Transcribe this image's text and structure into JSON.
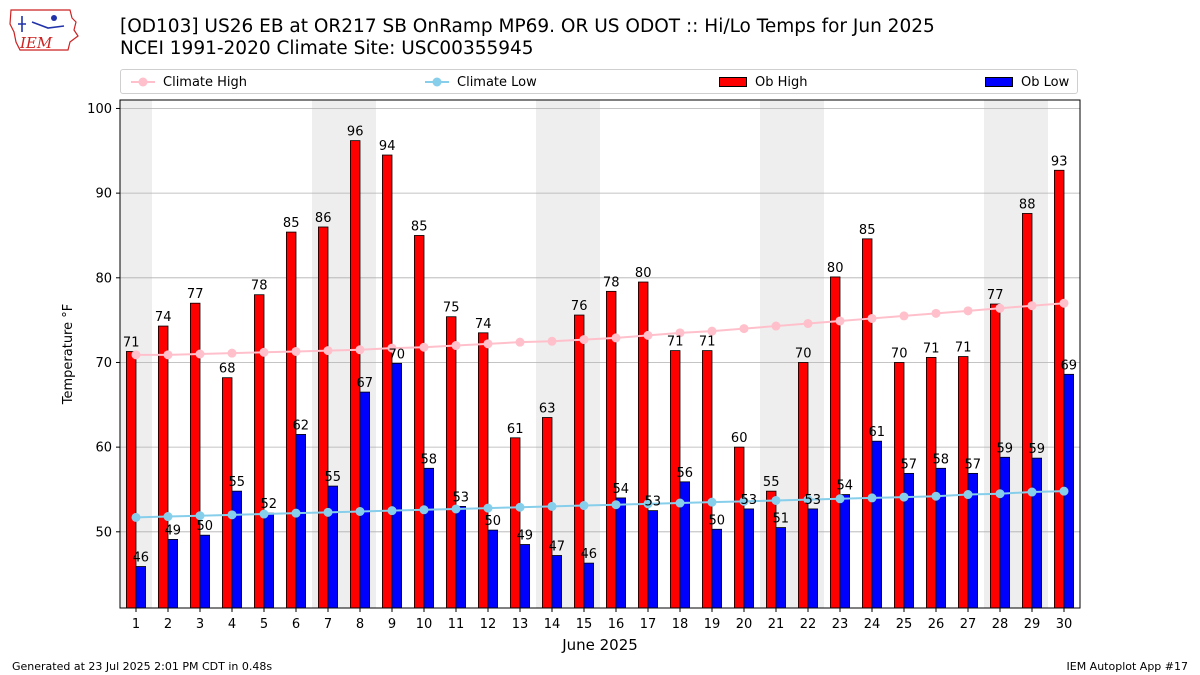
{
  "header": {
    "title_line1": "[OD103] US26 EB at OR217 SB OnRamp MP69. OR US ODOT :: Hi/Lo Temps for Jun 2025",
    "title_line2": "NCEI 1991-2020 Climate Site: USC00355945",
    "logo_text": "IEM"
  },
  "footer": {
    "generated": "Generated at 23 Jul 2025 2:01 PM CDT in 0.48s",
    "app": "IEM Autoplot App #17"
  },
  "colors": {
    "ob_high": "#ff0000",
    "ob_low": "#0000ff",
    "climate_high": "#ffc0cb",
    "climate_low": "#87ceeb",
    "weekend_shade": "#eeeeee",
    "grid": "#b0b0b0"
  },
  "chart_data": {
    "type": "bar",
    "title": "[OD103] US26 EB at OR217 SB OnRamp MP69. OR US ODOT :: Hi/Lo Temps for Jun 2025",
    "subtitle": "NCEI 1991-2020 Climate Site: USC00355945",
    "xlabel": "June 2025",
    "ylabel": "Temperature °F",
    "ylim": [
      41,
      101
    ],
    "yticks": [
      50,
      60,
      70,
      80,
      90,
      100
    ],
    "grid": true,
    "legend_position": "top",
    "categories": [
      "1",
      "2",
      "3",
      "4",
      "5",
      "6",
      "7",
      "8",
      "9",
      "10",
      "11",
      "12",
      "13",
      "14",
      "15",
      "16",
      "17",
      "18",
      "19",
      "20",
      "21",
      "22",
      "23",
      "24",
      "25",
      "26",
      "27",
      "28",
      "29",
      "30"
    ],
    "shaded_days": [
      1,
      7,
      8,
      14,
      15,
      21,
      22,
      28,
      29
    ],
    "series": [
      {
        "name": "Ob High",
        "kind": "bar",
        "values": [
          71,
          74,
          77,
          68,
          78,
          85,
          86,
          96,
          94,
          85,
          75,
          74,
          61,
          63,
          76,
          78,
          80,
          71,
          71,
          60,
          55,
          70,
          80,
          85,
          70,
          71,
          71,
          77,
          88,
          93
        ],
        "heights": [
          71.3,
          74.3,
          77.0,
          68.2,
          78.0,
          85.4,
          86.0,
          96.2,
          94.5,
          85.0,
          75.4,
          73.5,
          61.1,
          63.5,
          75.6,
          78.4,
          79.5,
          71.4,
          71.4,
          60.0,
          54.8,
          70.0,
          80.1,
          84.6,
          70.0,
          70.6,
          70.7,
          76.9,
          87.6,
          92.7
        ]
      },
      {
        "name": "Ob Low",
        "kind": "bar",
        "values": [
          46,
          49,
          50,
          55,
          52,
          62,
          55,
          67,
          70,
          58,
          53,
          50,
          49,
          47,
          46,
          54,
          53,
          56,
          50,
          53,
          51,
          53,
          54,
          61,
          57,
          58,
          57,
          59,
          59,
          69
        ],
        "heights": [
          45.9,
          49.1,
          49.6,
          54.8,
          52.2,
          61.5,
          55.4,
          66.5,
          69.9,
          57.5,
          53.0,
          50.2,
          48.5,
          47.2,
          46.3,
          54.0,
          52.5,
          55.9,
          50.3,
          52.7,
          50.5,
          52.7,
          54.4,
          60.7,
          56.9,
          57.5,
          56.9,
          58.8,
          58.7,
          68.6
        ]
      },
      {
        "name": "Climate High",
        "kind": "line",
        "values": [
          70.9,
          70.9,
          71.0,
          71.1,
          71.2,
          71.3,
          71.4,
          71.5,
          71.7,
          71.8,
          72.0,
          72.2,
          72.4,
          72.5,
          72.7,
          72.9,
          73.2,
          73.5,
          73.7,
          74.0,
          74.3,
          74.6,
          74.9,
          75.2,
          75.5,
          75.8,
          76.1,
          76.4,
          76.7,
          77.0
        ]
      },
      {
        "name": "Climate Low",
        "kind": "line",
        "values": [
          51.7,
          51.8,
          51.9,
          52.0,
          52.1,
          52.2,
          52.3,
          52.4,
          52.5,
          52.6,
          52.7,
          52.8,
          52.9,
          53.0,
          53.1,
          53.2,
          53.3,
          53.4,
          53.5,
          53.6,
          53.7,
          53.8,
          53.9,
          54.0,
          54.1,
          54.2,
          54.4,
          54.5,
          54.7,
          54.8
        ]
      }
    ]
  }
}
